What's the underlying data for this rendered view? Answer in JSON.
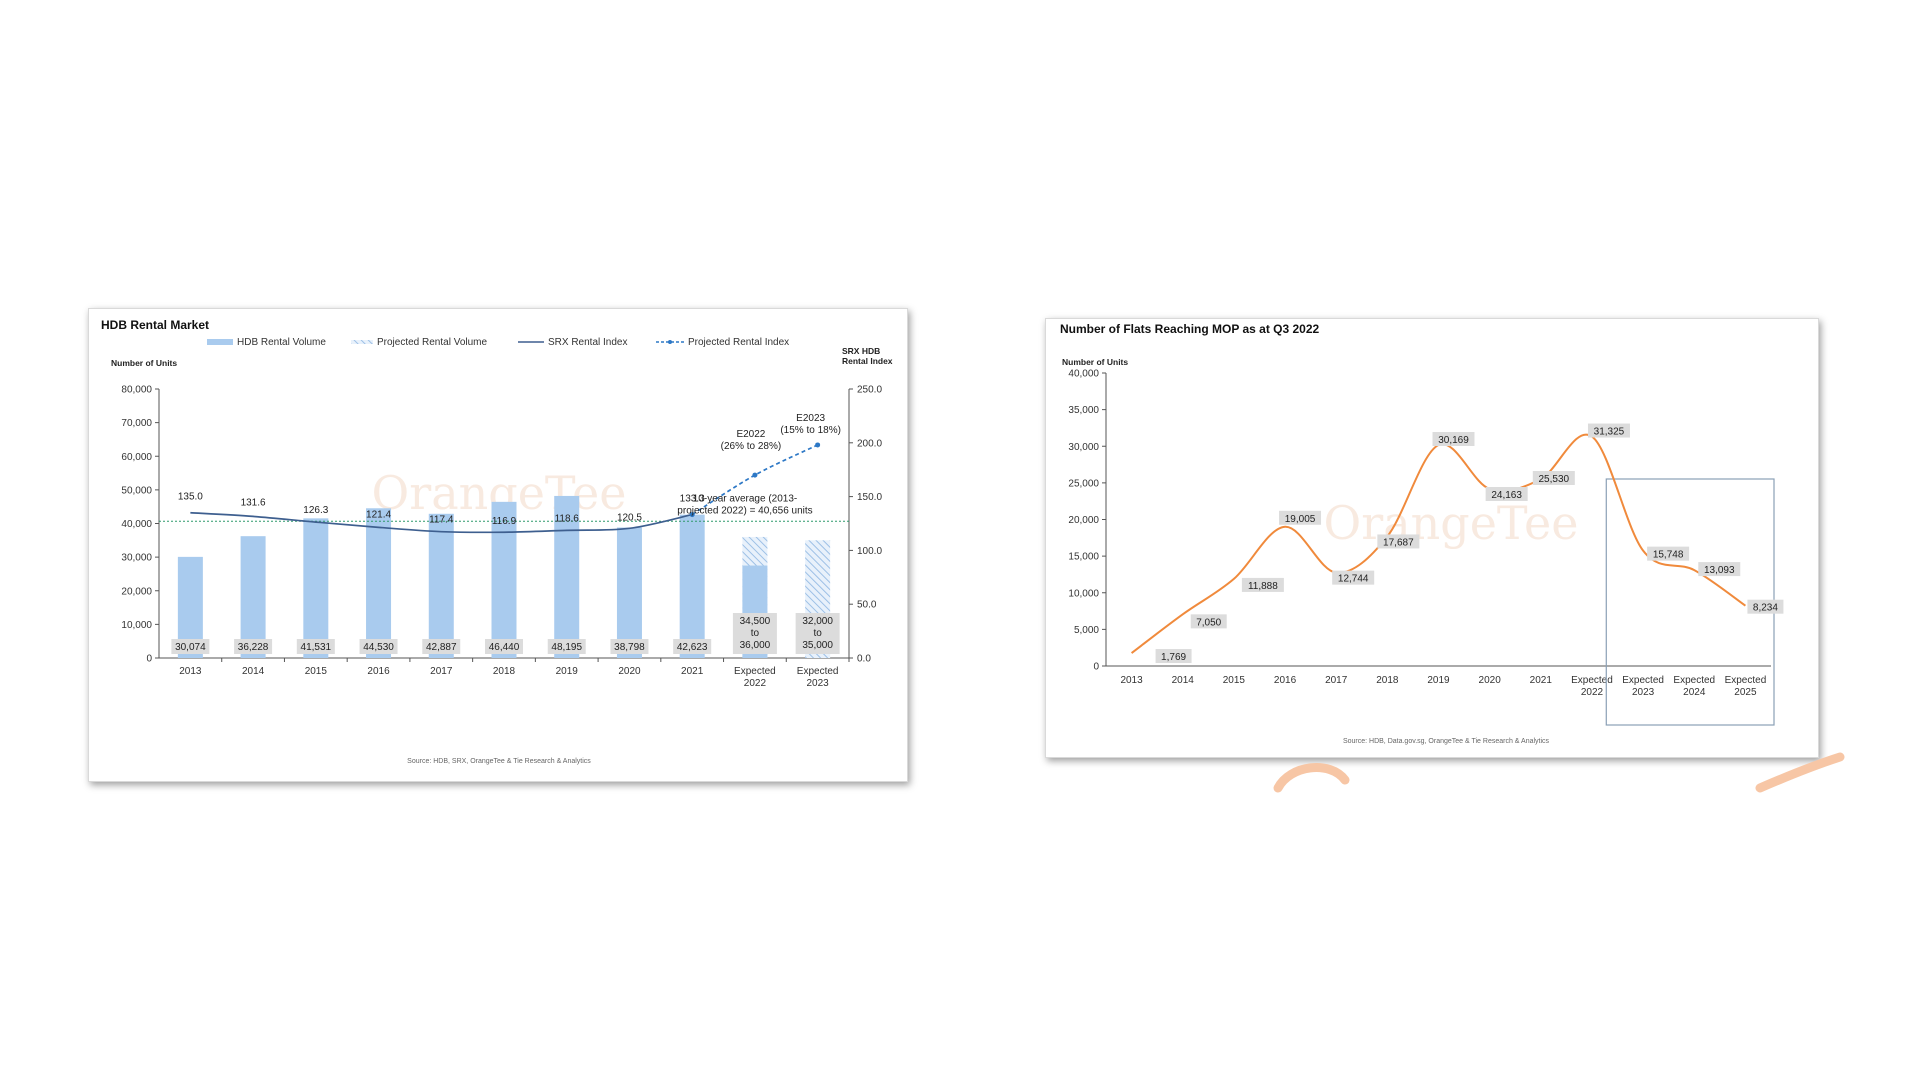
{
  "colors": {
    "bar": "#a9cbee",
    "bar_projected": "#a9cbee",
    "line_index": "#3e5f8f",
    "line_projected": "#2d78c6",
    "avg_line": "#2f9a6b",
    "line_mop": "#f08a3c",
    "label_box": "#dcdcdc",
    "highlight_box": "#8aa0b6"
  },
  "chart_data": [
    {
      "type": "bar",
      "title": "HDB Rental Market",
      "ylabel": "Number of Units",
      "y2label": "SRX HDB Rental Index",
      "ylim": [
        0,
        80000
      ],
      "y2lim": [
        0,
        250
      ],
      "yticks": [
        "0",
        "10,000",
        "20,000",
        "30,000",
        "40,000",
        "50,000",
        "60,000",
        "70,000",
        "80,000"
      ],
      "y2ticks": [
        "0.0",
        "50.0",
        "100.0",
        "150.0",
        "200.0",
        "250.0"
      ],
      "categories": [
        "2013",
        "2014",
        "2015",
        "2016",
        "2017",
        "2018",
        "2019",
        "2020",
        "2021",
        "Expected 2022",
        "Expected 2023"
      ],
      "legend": [
        "HDB Rental Volume",
        "Projected Rental Volume",
        "SRX Rental Index",
        "Projected Rental Index"
      ],
      "series": [
        {
          "name": "HDB Rental Volume",
          "values": [
            30074,
            36228,
            41531,
            44530,
            42887,
            46440,
            48195,
            38798,
            42623,
            27500,
            null
          ]
        },
        {
          "name": "Projected Rental Volume",
          "values": [
            null,
            null,
            null,
            null,
            null,
            null,
            null,
            null,
            null,
            36000,
            35000
          ]
        },
        {
          "name": "SRX Rental Index",
          "values": [
            135.0,
            131.6,
            126.3,
            121.4,
            117.4,
            116.9,
            118.6,
            120.5,
            133.3,
            null,
            null
          ]
        },
        {
          "name": "Projected Rental Index",
          "values": [
            null,
            null,
            null,
            null,
            null,
            null,
            null,
            null,
            133.3,
            170,
            198
          ]
        }
      ],
      "volume_labels": [
        "30,074",
        "36,228",
        "41,531",
        "44,530",
        "42,887",
        "46,440",
        "48,195",
        "38,798",
        "42,623",
        "34,500\nto\n36,000",
        "32,000\nto\n35,000"
      ],
      "index_labels": [
        "135.0",
        "131.6",
        "126.3",
        "121.4",
        "117.4",
        "116.9",
        "118.6",
        "120.5",
        "133.3"
      ],
      "projection_labels": [
        "E2022\n(26% to 28%)",
        "E2023\n(15% to 18%)"
      ],
      "average": {
        "value": 40656,
        "label": "10-year average (2013-\nprojected 2022) = 40,656 units"
      },
      "source": "Source: HDB, SRX, OrangeTee & Tie Research & Analytics"
    },
    {
      "type": "line",
      "title": "Number of Flats Reaching MOP as at Q3 2022",
      "ylabel": "Number of Units",
      "ylim": [
        0,
        40000
      ],
      "yticks": [
        "0",
        "5,000",
        "10,000",
        "15,000",
        "20,000",
        "25,000",
        "30,000",
        "35,000",
        "40,000"
      ],
      "categories": [
        "2013",
        "2014",
        "2015",
        "2016",
        "2017",
        "2018",
        "2019",
        "2020",
        "2021",
        "Expected 2022",
        "Expected 2023",
        "Expected 2024",
        "Expected 2025"
      ],
      "series": [
        {
          "values": [
            1769,
            7050,
            11888,
            19005,
            12744,
            17687,
            30169,
            24163,
            25530,
            31325,
            15748,
            13093,
            8234
          ]
        }
      ],
      "value_labels": [
        "1,769",
        "7,050",
        "11,888",
        "19,005",
        "12,744",
        "17,687",
        "30,169",
        "24,163",
        "25,530",
        "31,325",
        "15,748",
        "13,093",
        "8,234"
      ],
      "source": "Source: HDB, Data.gov.sg, OrangeTee & Tie Research & Analytics"
    }
  ],
  "watermark": "OrangeTee"
}
